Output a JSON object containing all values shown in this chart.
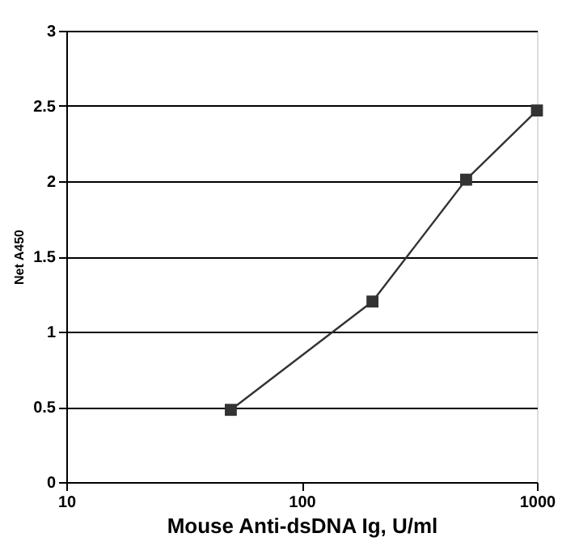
{
  "chart_data": {
    "type": "line",
    "xlabel": "Mouse Anti-dsDNA Ig, U/ml",
    "ylabel": "Net A450",
    "x": [
      50,
      200,
      500,
      1000
    ],
    "series": [
      {
        "color": "#333333",
        "values": [
          0.48,
          1.2,
          2.01,
          2.47
        ]
      }
    ],
    "log": "x",
    "xlim": [
      10,
      1000
    ],
    "xticks": [
      10,
      100,
      1000
    ],
    "ylim": [
      0,
      3
    ],
    "yticks": [
      0,
      0.5,
      1,
      1.5,
      2,
      2.5,
      3
    ],
    "grid": "y",
    "marker": "square",
    "line_style": "solid",
    "legend": false
  }
}
